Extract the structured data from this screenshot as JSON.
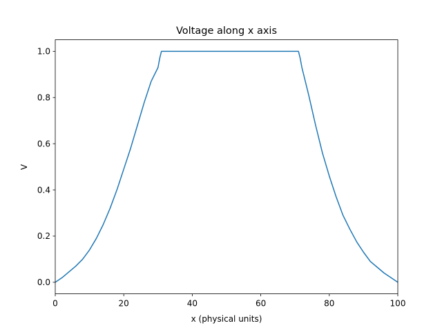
{
  "chart_data": {
    "type": "line",
    "title": "Voltage along x axis",
    "xlabel": "x (physical units)",
    "ylabel": "V",
    "xlim": [
      0,
      100
    ],
    "ylim": [
      -0.05,
      1.05
    ],
    "x_ticks": [
      0,
      20,
      40,
      60,
      80,
      100
    ],
    "x_tick_labels": [
      "0",
      "20",
      "40",
      "60",
      "80",
      "100"
    ],
    "y_ticks": [
      0.0,
      0.2,
      0.4,
      0.6,
      0.8,
      1.0
    ],
    "y_tick_labels": [
      "0.0",
      "0.2",
      "0.4",
      "0.6",
      "0.8",
      "1.0"
    ],
    "grid": false,
    "series": [
      {
        "color": "#1f77b4",
        "x": [
          0,
          2,
          4,
          6,
          8,
          10,
          12,
          14,
          16,
          18,
          20,
          22,
          24,
          26,
          28,
          30,
          30.5,
          31,
          40,
          50,
          60,
          70,
          71,
          71.5,
          72,
          74,
          76,
          78,
          80,
          82,
          84,
          86,
          88,
          90,
          92,
          94,
          96,
          98,
          100
        ],
        "y": [
          0.0,
          0.02,
          0.045,
          0.07,
          0.1,
          0.14,
          0.19,
          0.25,
          0.32,
          0.4,
          0.49,
          0.58,
          0.68,
          0.78,
          0.87,
          0.93,
          0.97,
          1.0,
          1.0,
          1.0,
          1.0,
          1.0,
          1.0,
          0.97,
          0.93,
          0.81,
          0.68,
          0.56,
          0.46,
          0.37,
          0.29,
          0.23,
          0.175,
          0.13,
          0.09,
          0.065,
          0.04,
          0.02,
          0.0
        ]
      }
    ]
  }
}
